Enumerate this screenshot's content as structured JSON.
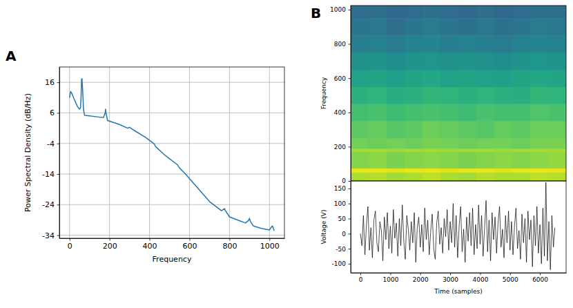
{
  "chart_data": [
    {
      "type": "line",
      "panel_label": "A",
      "x_label": "Frequency",
      "y_label": "Power Spectral Density (dB/Hz)",
      "x": [
        0,
        5,
        10,
        20,
        30,
        40,
        50,
        55,
        58,
        60,
        62,
        65,
        70,
        75,
        100,
        150,
        170,
        178,
        180,
        182,
        190,
        250,
        290,
        300,
        310,
        330,
        380,
        420,
        425,
        430,
        480,
        540,
        545,
        550,
        580,
        620,
        660,
        700,
        760,
        775,
        780,
        800,
        840,
        880,
        895,
        900,
        905,
        920,
        960,
        1000,
        1010,
        1015,
        1024
      ],
      "series": [
        {
          "color": "#1f77b4",
          "values": [
            11,
            13,
            12.5,
            11,
            9.5,
            8,
            7.2,
            7.8,
            12,
            17,
            17.2,
            14,
            7,
            5.2,
            5,
            4.6,
            4.5,
            6,
            7.2,
            6,
            3.5,
            2.2,
            1,
            1.3,
            0.8,
            0,
            -2,
            -4,
            -4.3,
            -5,
            -8,
            -11,
            -11.5,
            -12,
            -14,
            -17,
            -20,
            -23,
            -26,
            -25.3,
            -26,
            -28,
            -29,
            -30,
            -29.2,
            -28.5,
            -29.5,
            -31,
            -31.8,
            -32.3,
            -31.3,
            -31,
            -32.5
          ]
        }
      ],
      "xlim": [
        -51,
        1075
      ],
      "ylim": [
        -35,
        21
      ],
      "xticks": [
        0,
        200,
        400,
        600,
        800,
        1000
      ],
      "yticks": [
        -34,
        -24,
        -14,
        -4,
        6,
        16
      ],
      "grid": true
    },
    {
      "type": "heatmap",
      "panel_label": "B",
      "y_label": "Frequency",
      "x_bins": [
        -325,
        275,
        875,
        1475,
        2075,
        2675,
        3275,
        3875,
        4475,
        5075,
        5675,
        6275,
        6875
      ],
      "y_bins": [
        0,
        50,
        75,
        170,
        190,
        250,
        350,
        450,
        550,
        650,
        750,
        850,
        950,
        1024
      ],
      "cells": [
        [
          10,
          11,
          9,
          10,
          12,
          10,
          9,
          11,
          10,
          10,
          12,
          11
        ],
        [
          17,
          17,
          16,
          17,
          17,
          16,
          17,
          17,
          16,
          17,
          17,
          17
        ],
        [
          5,
          6,
          4,
          5,
          6,
          5,
          4,
          5,
          6,
          5,
          6,
          7
        ],
        [
          9,
          9,
          8,
          9,
          9,
          8,
          9,
          9,
          8,
          9,
          9,
          9
        ],
        [
          3,
          2,
          3,
          2,
          4,
          3,
          2,
          3,
          3,
          2,
          4,
          4
        ],
        [
          0,
          1,
          -1,
          0,
          2,
          1,
          0,
          -1,
          1,
          0,
          2,
          2
        ],
        [
          -4,
          -3,
          -5,
          -4,
          -3,
          -4,
          -5,
          -3,
          -4,
          -4,
          -2,
          -3
        ],
        [
          -9,
          -8,
          -10,
          -9,
          -7,
          -8,
          -9,
          -8,
          -9,
          -10,
          -7,
          -8
        ],
        [
          -14,
          -13,
          -15,
          -13,
          -12,
          -14,
          -13,
          -14,
          -15,
          -13,
          -12,
          -13
        ],
        [
          -20,
          -19,
          -21,
          -19,
          -18,
          -20,
          -19,
          -20,
          -21,
          -19,
          -18,
          -19
        ],
        [
          -26,
          -25,
          -27,
          -25,
          -24,
          -26,
          -25,
          -26,
          -27,
          -25,
          -24,
          -25
        ],
        [
          -29,
          -28,
          -31,
          -29,
          -27,
          -29,
          -30,
          -28,
          -30,
          -29,
          -27,
          -28
        ],
        [
          -32,
          -31,
          -33,
          -32,
          -30,
          -32,
          -33,
          -31,
          -33,
          -32,
          -30,
          -31
        ]
      ],
      "color_range": [
        -60,
        20
      ],
      "xlim": [
        -325,
        6875
      ],
      "ylim": [
        0,
        1024
      ],
      "yticks": [
        0,
        200,
        400,
        600,
        800,
        1000
      ],
      "tick_labels": "y"
    },
    {
      "type": "line",
      "x_label": "Time (samples)",
      "y_label": "Voltage (V)",
      "x": [
        0,
        50,
        100,
        150,
        200,
        250,
        300,
        350,
        400,
        450,
        500,
        550,
        600,
        650,
        700,
        750,
        800,
        850,
        900,
        950,
        1000,
        1050,
        1100,
        1150,
        1200,
        1250,
        1300,
        1350,
        1400,
        1450,
        1500,
        1550,
        1600,
        1650,
        1700,
        1750,
        1800,
        1850,
        1900,
        1950,
        2000,
        2050,
        2100,
        2150,
        2200,
        2250,
        2300,
        2350,
        2400,
        2450,
        2500,
        2550,
        2600,
        2650,
        2700,
        2750,
        2800,
        2850,
        2900,
        2950,
        3000,
        3050,
        3100,
        3150,
        3200,
        3250,
        3300,
        3350,
        3400,
        3450,
        3500,
        3550,
        3600,
        3650,
        3700,
        3750,
        3800,
        3850,
        3900,
        3950,
        4000,
        4050,
        4100,
        4150,
        4200,
        4250,
        4300,
        4350,
        4400,
        4450,
        4500,
        4550,
        4600,
        4650,
        4700,
        4750,
        4800,
        4850,
        4900,
        4950,
        5000,
        5050,
        5100,
        5150,
        5200,
        5250,
        5300,
        5350,
        5400,
        5450,
        5500,
        5550,
        5600,
        5650,
        5700,
        5750,
        5800,
        5850,
        5900,
        5950,
        6000,
        6050,
        6100,
        6150,
        6200,
        6250,
        6300,
        6350,
        6400,
        6450,
        6500
      ],
      "series": [
        {
          "color": "#000000",
          "values": [
            0,
            -40,
            60,
            -70,
            30,
            90,
            -55,
            20,
            -80,
            45,
            75,
            -30,
            -60,
            40,
            10,
            -90,
            55,
            -20,
            70,
            -50,
            25,
            -65,
            80,
            -15,
            35,
            -75,
            50,
            -40,
            95,
            -25,
            -85,
            60,
            15,
            -55,
            40,
            -30,
            70,
            -95,
            20,
            55,
            -45,
            30,
            -60,
            85,
            -20,
            45,
            -70,
            10,
            65,
            -50,
            -85,
            35,
            75,
            -35,
            20,
            -65,
            50,
            -10,
            80,
            -55,
            40,
            -30,
            100,
            -45,
            60,
            -80,
            25,
            90,
            -60,
            15,
            -95,
            55,
            -25,
            70,
            -40,
            85,
            -70,
            30,
            -50,
            95,
            -35,
            60,
            -75,
            20,
            110,
            -60,
            45,
            -90,
            70,
            -20,
            55,
            -65,
            35,
            90,
            -45,
            15,
            -80,
            60,
            -30,
            75,
            -55,
            40,
            -70,
            25,
            85,
            -50,
            10,
            -85,
            65,
            -30,
            50,
            -95,
            75,
            -20,
            45,
            -110,
            60,
            -40,
            90,
            -65,
            30,
            -100,
            85,
            -75,
            170,
            -90,
            40,
            -120,
            60,
            -45,
            20
          ]
        }
      ],
      "xlim": [
        -325,
        6875
      ],
      "ylim": [
        -130,
        175
      ],
      "xticks": [
        0,
        1000,
        2000,
        3000,
        4000,
        5000,
        6000
      ],
      "yticks": [
        -100,
        -50,
        0,
        50,
        100,
        150
      ]
    }
  ]
}
